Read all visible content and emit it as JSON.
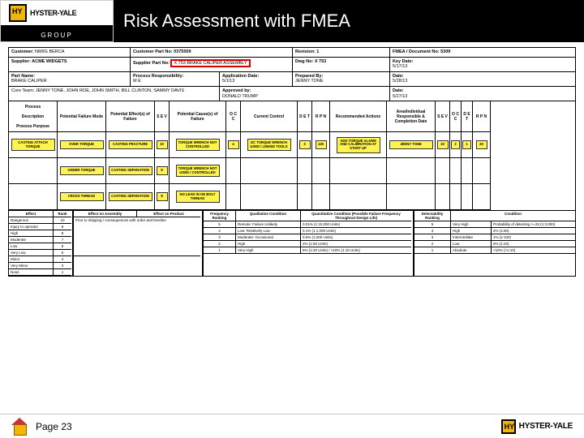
{
  "slide": {
    "title": "Risk Assessment with FMEA",
    "page_label": "Page 23",
    "brand": "HYSTER-YALE",
    "brand_sub": "GROUP"
  },
  "hdr": {
    "customer": "Customer:",
    "customer_v": "NMIIG BERCA",
    "part_no": "Customer Part No: 0375509",
    "revision": "Revision: 1",
    "doc": "FMEA / Document No: 5309",
    "supplier": "Supplier: ACME WIDGETS",
    "supplier_part": "Supplier Part No:",
    "supplier_part_v": "X 753 BRAKE CALIPER ASSEMBLY",
    "dwg": "Dwg No: X 753",
    "keydate_l": "Key Date:",
    "keydate_v": "5/17/13",
    "partname_l": "Part Name:",
    "partname_v": "BRAKE CALIPER",
    "proc_resp_l": "Process Responsibility:",
    "proc_resp_v": "M E",
    "app_date_l": "Application Date:",
    "app_date_v": "5/1/13",
    "prep_by_l": "Prepared By:",
    "prep_by_v": "JENNY TONE",
    "date_l": "Date:",
    "date_v": "5/28/13",
    "core_team": "Core Team: JENNY TONE, JOHN ROE, JOHN SMITH, BILL CLINTON, SAMMY DAVIS",
    "approved_l": "Approved by:",
    "approved_v": "DONALD TRUMP",
    "date2": "5/27/13"
  },
  "cols": {
    "c1a": "Process",
    "c1b": "Description",
    "c1c": "Process Purpose",
    "c2": "Potential Failure Mode",
    "c3": "Potential Effect(s) of Failure",
    "c4": "S E V",
    "c5": "Potential Cause(s) of Failure",
    "c6": "O C C",
    "c7": "Current Control",
    "c8": "D E T",
    "c9": "R P N",
    "c10": "Recommended Actions",
    "c11a": "Area/Individual",
    "c11b": "Responsible & Completion Date",
    "c12": "S E V",
    "c13": "O C C",
    "c14": "D E T",
    "c15": "R P N"
  },
  "rows": [
    {
      "proc": "CASTING ATTACH TORQUE",
      "mode": "OVER TORQUE",
      "effect": "CASTING FRACTURE",
      "sev": "10",
      "cause": "TORQUE WRENCH NOT CONTROLLED",
      "occ": "4",
      "ctrl": "DC TORQUE WRENCH USED / LINKED TOOLS",
      "det": "3",
      "rpn": "120",
      "rec": "ADD TORQUE ALARM AND CALIBRATION AT START UP",
      "resp": "JENNY TONE",
      "sev2": "10",
      "occ2": "2",
      "det2": "1",
      "rpn2": "20"
    },
    {
      "proc": "",
      "mode": "UNDER TORQUE",
      "effect": "CASTING SEPARATION",
      "sev": "8",
      "cause": "TORQUE WRENCH NOT USED / CONTROLLED",
      "occ": "",
      "ctrl": "",
      "det": "",
      "rpn": "",
      "rec": "",
      "resp": "",
      "sev2": "",
      "occ2": "",
      "det2": "",
      "rpn2": ""
    },
    {
      "proc": "",
      "mode": "CROSS THREAD",
      "effect": "CASTING SEPARATION",
      "sev": "8",
      "cause": "NO LEAD IN ON BOLT THREAD",
      "occ": "",
      "ctrl": "",
      "det": "",
      "rpn": "",
      "rec": "",
      "resp": "",
      "sev2": "",
      "occ2": "",
      "det2": "",
      "rpn2": ""
    }
  ],
  "rank": {
    "t1": {
      "hd": [
        "Effect",
        "Rank"
      ],
      "rows": [
        [
          "Dangerous",
          "10"
        ],
        [
          "Injury to operator",
          "9"
        ],
        [
          "High",
          "8"
        ],
        [
          "Moderate",
          "7"
        ],
        [
          "Low",
          "6"
        ],
        [
          "Very Low",
          "5"
        ],
        [
          "Minor",
          "4"
        ],
        [
          "Very Minor",
          "3"
        ],
        [
          "None",
          "1"
        ]
      ]
    },
    "t2": {
      "hd": [
        "Effect on Assembly",
        "Effect on Product"
      ],
      "sub": "Prior to shipping / consequences with order and timeline"
    },
    "t3": {
      "hd": [
        "Frequency Ranking",
        "Qualitative Condition",
        "Quantitative Condition (Possible Failure Frequency Throughout Design Life)"
      ],
      "rows": [
        [
          "5",
          "Remote: Failure Unlikely",
          "0.01% (1:10,000 Units)"
        ],
        [
          "4",
          "Low: Relatively Low",
          "0.1% (1:1,000 Units)"
        ],
        [
          "3",
          "Moderate: Occasional",
          "0.5% (1:200 Units)"
        ],
        [
          "2",
          "High",
          "2% (1:50 Units)"
        ],
        [
          "1",
          "Very High",
          "5% (1:20 Units) / >10% (1:10 Units)"
        ]
      ]
    },
    "t4": {
      "hd": [
        "Detectability Ranking",
        "Condition"
      ],
      "rows": [
        [
          "5",
          "Very High",
          "Probability of detecting >=33 (1:3,000)"
        ],
        [
          "4",
          "High",
          "2% (1:50)"
        ],
        [
          "3",
          "Intermediate",
          "1% (1:100)"
        ],
        [
          "2",
          "Low",
          "5% (1:20)"
        ],
        [
          "1",
          "Absolute",
          "<10% (>1:10)"
        ]
      ]
    }
  },
  "colors": {
    "highlight": "#fff44f",
    "red": "#d00000",
    "black": "#000000"
  }
}
